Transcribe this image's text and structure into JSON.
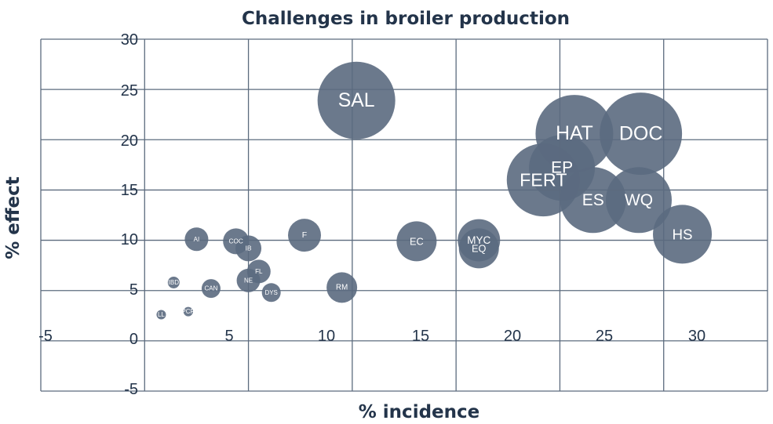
{
  "chart_data": {
    "type": "bubble",
    "title": "Challenges in broiler production",
    "xlabel": "% incidence",
    "ylabel": "% effect",
    "xlim": [
      -5,
      30
    ],
    "ylim": [
      -5,
      30
    ],
    "x_tick_labels": [
      "-5",
      "5",
      "10",
      "15",
      "20",
      "25",
      "30"
    ],
    "y_tick_labels": [
      "30",
      "25",
      "20",
      "15",
      "10",
      "5",
      "0",
      "-5"
    ],
    "grid": true,
    "points": [
      {
        "label": "SAL",
        "x": 10.2,
        "y": 23.9,
        "size": 3.3
      },
      {
        "label": "HAT",
        "x": 20.7,
        "y": 20.6,
        "size": 3.3
      },
      {
        "label": "DOC",
        "x": 23.9,
        "y": 20.6,
        "size": 3.5
      },
      {
        "label": "EP",
        "x": 20.1,
        "y": 17.2,
        "size": 2.8
      },
      {
        "label": "FERT",
        "x": 19.2,
        "y": 16.0,
        "size": 3.1
      },
      {
        "label": "ES",
        "x": 21.6,
        "y": 14.0,
        "size": 2.8
      },
      {
        "label": "WQ",
        "x": 23.8,
        "y": 14.0,
        "size": 2.8
      },
      {
        "label": "HS",
        "x": 25.9,
        "y": 10.6,
        "size": 2.5
      },
      {
        "label": "MYC",
        "x": 16.1,
        "y": 10.0,
        "size": 1.8
      },
      {
        "label": "EQ",
        "x": 16.1,
        "y": 9.2,
        "size": 1.7
      },
      {
        "label": "EC",
        "x": 13.1,
        "y": 9.9,
        "size": 1.7
      },
      {
        "label": "F",
        "x": 7.7,
        "y": 10.5,
        "size": 1.4
      },
      {
        "label": "AI",
        "x": 2.5,
        "y": 10.1,
        "size": 1.0
      },
      {
        "label": "COC",
        "x": 4.4,
        "y": 9.9,
        "size": 1.1
      },
      {
        "label": "IB",
        "x": 5.0,
        "y": 9.2,
        "size": 1.1
      },
      {
        "label": "FL",
        "x": 5.5,
        "y": 6.9,
        "size": 1.0
      },
      {
        "label": "NE",
        "x": 5.0,
        "y": 6.0,
        "size": 1.0
      },
      {
        "label": "DYS",
        "x": 6.1,
        "y": 4.8,
        "size": 0.8
      },
      {
        "label": "RM",
        "x": 9.5,
        "y": 5.3,
        "size": 1.3
      },
      {
        "label": "CAN",
        "x": 3.2,
        "y": 5.2,
        "size": 0.8
      },
      {
        "label": "IBD",
        "x": 1.4,
        "y": 5.8,
        "size": 0.5
      },
      {
        "label": "PCR",
        "x": 2.1,
        "y": 2.9,
        "size": 0.4
      },
      {
        "label": "LL",
        "x": 0.8,
        "y": 2.6,
        "size": 0.4
      }
    ]
  }
}
